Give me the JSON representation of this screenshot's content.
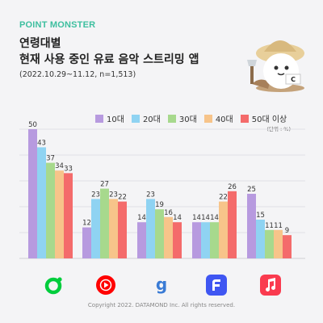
{
  "header": {
    "brand": "POINT MONSTER",
    "title_line1": "연령대별",
    "title_line2": "현재 사용 중인 유료 음악 스트리밍 앱",
    "subtitle": "(2022.10.29~11.12, n=1,513)",
    "brand_color": "#3dbf9f"
  },
  "chart_data": {
    "type": "bar",
    "unit_label": "(단위 : %)",
    "categories": [
      "melon-icon",
      "youtube-music-icon",
      "genie-icon",
      "flo-icon",
      "apple-music-icon"
    ],
    "series": [
      {
        "name": "10대",
        "color": "#b79adf",
        "values": [
          50,
          12,
          14,
          14,
          25
        ]
      },
      {
        "name": "20대",
        "color": "#8fd3f2",
        "values": [
          43,
          23,
          23,
          14,
          15
        ]
      },
      {
        "name": "30대",
        "color": "#a7d98d",
        "values": [
          37,
          27,
          19,
          14,
          11
        ]
      },
      {
        "name": "40대",
        "color": "#f7c48a",
        "values": [
          34,
          23,
          16,
          22,
          11
        ]
      },
      {
        "name": "50대 이상",
        "color": "#f46b6b",
        "values": [
          33,
          22,
          14,
          26,
          9
        ]
      }
    ],
    "ylim": [
      0,
      55
    ],
    "grid": true
  },
  "footer": {
    "copyright": "Copyright 2022. DATAMOND Inc. All rights reserved."
  }
}
